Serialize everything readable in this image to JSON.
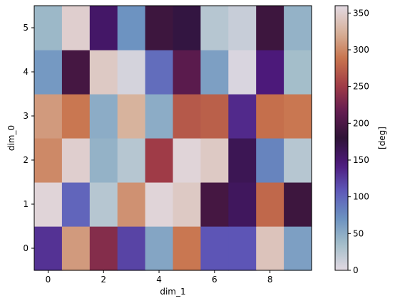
{
  "chart_data": {
    "type": "heatmap",
    "title": "",
    "xlabel": "dim_1",
    "ylabel": "dim_0",
    "x": [
      0,
      1,
      2,
      3,
      4,
      5,
      6,
      7,
      8,
      9
    ],
    "y": [
      0,
      1,
      2,
      3,
      4,
      5
    ],
    "x_ticks": [
      0,
      2,
      4,
      6,
      8
    ],
    "y_ticks": [
      0,
      1,
      2,
      3,
      4,
      5
    ],
    "values": [
      [
        130,
        310,
        235,
        120,
        55,
        290,
        110,
        110,
        340,
        60
      ],
      [
        355,
        100,
        25,
        305,
        355,
        345,
        195,
        160,
        280,
        190
      ],
      [
        300,
        350,
        45,
        25,
        250,
        355,
        345,
        165,
        80,
        25
      ],
      [
        310,
        290,
        50,
        325,
        50,
        270,
        275,
        135,
        285,
        290
      ],
      [
        65,
        195,
        345,
        8,
        95,
        210,
        60,
        5,
        145,
        35
      ],
      [
        40,
        350,
        155,
        70,
        190,
        175,
        25,
        15,
        190,
        45
      ]
    ],
    "colorbar": {
      "label": "[deg]",
      "range": [
        0,
        360
      ],
      "ticks": [
        0,
        50,
        100,
        150,
        200,
        250,
        300,
        350
      ],
      "colormap": "twilight",
      "stops": [
        "#e2d9e2",
        "#a2bdc9",
        "#6a90c0",
        "#5e59b9",
        "#4d197c",
        "#2f1437",
        "#631c51",
        "#a23d46",
        "#c8744d",
        "#d7b29b",
        "#e2d9e2"
      ]
    }
  }
}
